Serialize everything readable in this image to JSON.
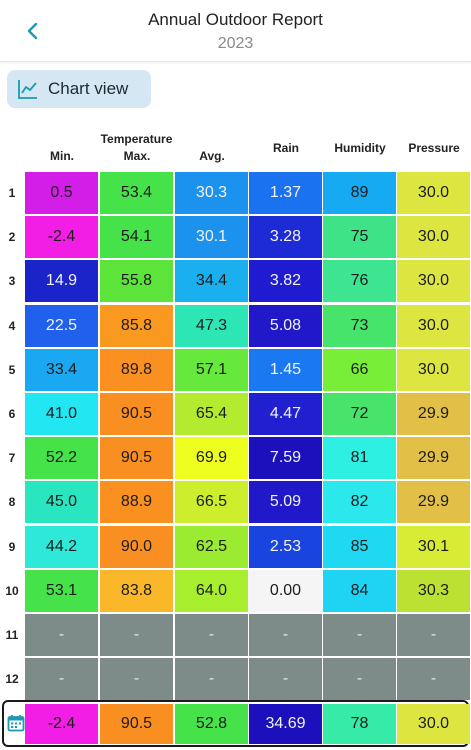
{
  "header": {
    "title": "Annual Outdoor Report",
    "subtitle": "2023"
  },
  "chart_button": {
    "label": "Chart view",
    "icon": "line-chart-icon"
  },
  "columns": {
    "group_label": "Temperature",
    "labels": [
      "Min.",
      "Max.",
      "Avg.",
      "Rain",
      "Humidity",
      "Pressure"
    ]
  },
  "rows": [
    {
      "num": "1",
      "cells": [
        {
          "v": "0.5",
          "c": "#d21ee6"
        },
        {
          "v": "53.4",
          "c": "#45e24a"
        },
        {
          "v": "30.3",
          "c": "#1b93ee"
        },
        {
          "v": "1.37",
          "c": "#1a72f0"
        },
        {
          "v": "89",
          "c": "#16aaf2"
        },
        {
          "v": "30.0",
          "c": "#dde640"
        }
      ]
    },
    {
      "num": "2",
      "cells": [
        {
          "v": "-2.4",
          "c": "#f21ee6"
        },
        {
          "v": "54.1",
          "c": "#45e24a"
        },
        {
          "v": "30.1",
          "c": "#1b93ee"
        },
        {
          "v": "3.28",
          "c": "#1d2bd6"
        },
        {
          "v": "75",
          "c": "#3ee287"
        },
        {
          "v": "30.0",
          "c": "#dde640"
        }
      ]
    },
    {
      "num": "3",
      "cells": [
        {
          "v": "14.9",
          "c": "#1a24c9"
        },
        {
          "v": "55.8",
          "c": "#5de43b"
        },
        {
          "v": "34.4",
          "c": "#1ab0f0"
        },
        {
          "v": "3.82",
          "c": "#1f1bd0"
        },
        {
          "v": "76",
          "c": "#3ee590"
        },
        {
          "v": "30.0",
          "c": "#dde640"
        }
      ]
    },
    {
      "num": "4",
      "cells": [
        {
          "v": "22.5",
          "c": "#2160ec"
        },
        {
          "v": "85.8",
          "c": "#f99920"
        },
        {
          "v": "47.3",
          "c": "#2de6b6"
        },
        {
          "v": "5.08",
          "c": "#2118c9"
        },
        {
          "v": "73",
          "c": "#46e46a"
        },
        {
          "v": "30.0",
          "c": "#dde640"
        }
      ]
    },
    {
      "num": "5",
      "cells": [
        {
          "v": "33.4",
          "c": "#1aa8f2"
        },
        {
          "v": "89.8",
          "c": "#f99020"
        },
        {
          "v": "57.1",
          "c": "#66e83c"
        },
        {
          "v": "1.45",
          "c": "#1a78f0"
        },
        {
          "v": "66",
          "c": "#78ee38"
        },
        {
          "v": "30.0",
          "c": "#dde640"
        }
      ]
    },
    {
      "num": "6",
      "cells": [
        {
          "v": "41.0",
          "c": "#22e6f2"
        },
        {
          "v": "90.5",
          "c": "#f98f20"
        },
        {
          "v": "65.4",
          "c": "#b3ec2e"
        },
        {
          "v": "4.47",
          "c": "#2020d0"
        },
        {
          "v": "72",
          "c": "#48e36a"
        },
        {
          "v": "29.9",
          "c": "#e2c048"
        }
      ]
    },
    {
      "num": "7",
      "cells": [
        {
          "v": "52.2",
          "c": "#45e24a"
        },
        {
          "v": "90.5",
          "c": "#f98f20"
        },
        {
          "v": "69.9",
          "c": "#eeff20"
        },
        {
          "v": "7.59",
          "c": "#1c10bc"
        },
        {
          "v": "81",
          "c": "#2ef0e2"
        },
        {
          "v": "29.9",
          "c": "#e2c048"
        }
      ]
    },
    {
      "num": "8",
      "cells": [
        {
          "v": "45.0",
          "c": "#2ae6c0"
        },
        {
          "v": "88.9",
          "c": "#f99020"
        },
        {
          "v": "66.5",
          "c": "#cdee2c"
        },
        {
          "v": "5.09",
          "c": "#2118c9"
        },
        {
          "v": "82",
          "c": "#2ae8ec"
        },
        {
          "v": "29.9",
          "c": "#e2c048"
        }
      ]
    },
    {
      "num": "9",
      "cells": [
        {
          "v": "44.2",
          "c": "#2ee8d8"
        },
        {
          "v": "90.0",
          "c": "#f98f20"
        },
        {
          "v": "62.5",
          "c": "#9bec30"
        },
        {
          "v": "2.53",
          "c": "#1a44e0"
        },
        {
          "v": "85",
          "c": "#1fd8f2"
        },
        {
          "v": "30.1",
          "c": "#d8ec36"
        }
      ]
    },
    {
      "num": "10",
      "cells": [
        {
          "v": "53.1",
          "c": "#45e24a"
        },
        {
          "v": "83.8",
          "c": "#fbb72a"
        },
        {
          "v": "64.0",
          "c": "#a6ee2e"
        },
        {
          "v": "0.00",
          "c": "#f5f5f5"
        },
        {
          "v": "84",
          "c": "#1fd4f2"
        },
        {
          "v": "30.3",
          "c": "#bbe232"
        }
      ]
    },
    {
      "num": "11",
      "empty": true,
      "cells": [
        {
          "v": "-",
          "c": "#7d8c89"
        },
        {
          "v": "-",
          "c": "#7d8c89"
        },
        {
          "v": "-",
          "c": "#7d8c89"
        },
        {
          "v": "-",
          "c": "#7d8c89"
        },
        {
          "v": "-",
          "c": "#7d8c89"
        },
        {
          "v": "-",
          "c": "#7d8c89"
        }
      ]
    },
    {
      "num": "12",
      "empty": true,
      "cells": [
        {
          "v": "-",
          "c": "#7d8c89"
        },
        {
          "v": "-",
          "c": "#7d8c89"
        },
        {
          "v": "-",
          "c": "#7d8c89"
        },
        {
          "v": "-",
          "c": "#7d8c89"
        },
        {
          "v": "-",
          "c": "#7d8c89"
        },
        {
          "v": "-",
          "c": "#7d8c89"
        }
      ]
    }
  ],
  "summary": {
    "icon": "calendar-icon",
    "cells": [
      {
        "v": "-2.4",
        "c": "#f21ee6"
      },
      {
        "v": "90.5",
        "c": "#f98f20"
      },
      {
        "v": "52.8",
        "c": "#45e24a"
      },
      {
        "v": "34.69",
        "c": "#1c10bc"
      },
      {
        "v": "78",
        "c": "#36eaa8"
      },
      {
        "v": "30.0",
        "c": "#dde640"
      }
    ]
  },
  "colors": {
    "accent": "#1a9bb0",
    "chart_button_bg": "#d5e7f3",
    "empty_cell": "#7d8c89"
  }
}
